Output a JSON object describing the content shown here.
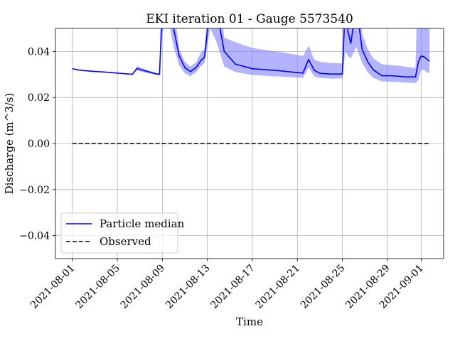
{
  "chart_data": {
    "type": "line",
    "title": "EKI iteration 01 - Gauge 5573540",
    "xlabel": "Time",
    "ylabel": "Discharge (m^3/s)",
    "xlim": [
      "2021-07-30T12:00",
      "2021-09-03T00:00"
    ],
    "ylim": [
      -0.05,
      0.05
    ],
    "x_ticks": [
      "2021-08-01",
      "2021-08-05",
      "2021-08-09",
      "2021-08-13",
      "2021-08-17",
      "2021-08-21",
      "2021-08-25",
      "2021-08-29",
      "2021-09-01"
    ],
    "y_ticks": [
      -0.04,
      -0.02,
      0.0,
      0.02,
      0.04
    ],
    "y_tick_labels": [
      "−0.04",
      "−0.02",
      "0.00",
      "0.02",
      "0.04"
    ],
    "grid": true,
    "legend_position": "lower-left",
    "colors": {
      "median": "#0000ff",
      "band": "#8080ff",
      "observed": "#000000"
    },
    "series": [
      {
        "name": "Particle median",
        "style": "line",
        "color": "#0000ff",
        "x": [
          "2021-08-01T00:00",
          "2021-08-01T12:00",
          "2021-08-02T00:00",
          "2021-08-03T00:00",
          "2021-08-04T00:00",
          "2021-08-05T00:00",
          "2021-08-06T00:00",
          "2021-08-06T08:00",
          "2021-08-06T18:00",
          "2021-08-07T12:00",
          "2021-08-08T12:00",
          "2021-08-08T18:00",
          "2021-08-09T00:00",
          "2021-08-09T12:00",
          "2021-08-10T00:00",
          "2021-08-10T12:00",
          "2021-08-11T00:00",
          "2021-08-11T12:00",
          "2021-08-12T00:00",
          "2021-08-12T10:00",
          "2021-08-12T18:00",
          "2021-08-13T06:00",
          "2021-08-13T18:00",
          "2021-08-14T12:00",
          "2021-08-15T12:00",
          "2021-08-17T00:00",
          "2021-08-19T00:00",
          "2021-08-21T00:00",
          "2021-08-21T12:00",
          "2021-08-22T00:00",
          "2021-08-22T12:00",
          "2021-08-23T00:00",
          "2021-08-24T00:00",
          "2021-08-25T00:00",
          "2021-08-25T06:00",
          "2021-08-25T12:00",
          "2021-08-25T18:00",
          "2021-08-26T06:00",
          "2021-08-26T18:00",
          "2021-08-27T06:00",
          "2021-08-27T18:00",
          "2021-08-28T12:00",
          "2021-08-29T12:00",
          "2021-08-30T12:00",
          "2021-08-31T12:00",
          "2021-08-31T18:00",
          "2021-09-01T00:00",
          "2021-09-01T06:00",
          "2021-09-01T12:00",
          "2021-09-01T18:00"
        ],
        "y": [
          0.0325,
          0.032,
          0.0317,
          0.0313,
          0.031,
          0.0306,
          0.0302,
          0.0301,
          0.0326,
          0.0315,
          0.0302,
          0.0301,
          0.06,
          0.08,
          0.05,
          0.038,
          0.033,
          0.0312,
          0.033,
          0.036,
          0.0375,
          0.06,
          0.06,
          0.04,
          0.0345,
          0.0325,
          0.0318,
          0.0308,
          0.0306,
          0.0365,
          0.0318,
          0.0305,
          0.0302,
          0.0302,
          0.06,
          0.0485,
          0.0435,
          0.06,
          0.041,
          0.0355,
          0.032,
          0.0295,
          0.0294,
          0.029,
          0.0289,
          0.0353,
          0.038,
          0.0377,
          0.0367,
          0.0358
        ]
      },
      {
        "name": "Observed",
        "style": "dashed",
        "color": "#000000",
        "x": [
          "2021-08-01T00:00",
          "2021-09-01T18:00"
        ],
        "y": [
          0.0,
          0.0
        ]
      }
    ],
    "band": {
      "color": "#8080ff",
      "x": [
        "2021-08-01T00:00",
        "2021-08-01T12:00",
        "2021-08-02T00:00",
        "2021-08-03T00:00",
        "2021-08-04T00:00",
        "2021-08-05T00:00",
        "2021-08-06T00:00",
        "2021-08-06T08:00",
        "2021-08-06T18:00",
        "2021-08-07T12:00",
        "2021-08-08T12:00",
        "2021-08-08T18:00",
        "2021-08-09T00:00",
        "2021-08-09T12:00",
        "2021-08-10T00:00",
        "2021-08-10T12:00",
        "2021-08-11T00:00",
        "2021-08-11T12:00",
        "2021-08-12T00:00",
        "2021-08-12T10:00",
        "2021-08-12T18:00",
        "2021-08-13T06:00",
        "2021-08-13T18:00",
        "2021-08-14T12:00",
        "2021-08-15T12:00",
        "2021-08-17T00:00",
        "2021-08-19T00:00",
        "2021-08-21T00:00",
        "2021-08-21T12:00",
        "2021-08-22T00:00",
        "2021-08-22T12:00",
        "2021-08-23T00:00",
        "2021-08-24T00:00",
        "2021-08-25T00:00",
        "2021-08-25T06:00",
        "2021-08-25T12:00",
        "2021-08-25T18:00",
        "2021-08-26T06:00",
        "2021-08-26T18:00",
        "2021-08-27T06:00",
        "2021-08-27T18:00",
        "2021-08-28T12:00",
        "2021-08-29T12:00",
        "2021-08-30T12:00",
        "2021-08-31T12:00",
        "2021-08-31T18:00",
        "2021-09-01T00:00",
        "2021-09-01T06:00",
        "2021-09-01T12:00",
        "2021-09-01T18:00"
      ],
      "upper": [
        0.0325,
        0.032,
        0.0317,
        0.0313,
        0.031,
        0.0306,
        0.0302,
        0.0301,
        0.0336,
        0.0322,
        0.0306,
        0.0305,
        0.08,
        0.08,
        0.06,
        0.041,
        0.0355,
        0.0335,
        0.0352,
        0.0395,
        0.041,
        0.08,
        0.08,
        0.046,
        0.044,
        0.0415,
        0.04,
        0.0385,
        0.038,
        0.0425,
        0.0365,
        0.0355,
        0.035,
        0.0348,
        0.08,
        0.08,
        0.08,
        0.08,
        0.048,
        0.041,
        0.037,
        0.0345,
        0.034,
        0.0335,
        0.0328,
        0.08,
        0.08,
        0.08,
        0.08,
        0.08
      ],
      "lower": [
        0.0325,
        0.032,
        0.0317,
        0.0313,
        0.031,
        0.0306,
        0.0302,
        0.0301,
        0.0318,
        0.0308,
        0.0298,
        0.0297,
        0.048,
        0.055,
        0.042,
        0.034,
        0.0305,
        0.0292,
        0.031,
        0.0335,
        0.035,
        0.05,
        0.045,
        0.0335,
        0.031,
        0.0298,
        0.0292,
        0.0287,
        0.0285,
        0.033,
        0.0292,
        0.0285,
        0.0282,
        0.0283,
        0.04,
        0.038,
        0.037,
        0.042,
        0.035,
        0.031,
        0.0285,
        0.027,
        0.0268,
        0.0265,
        0.0262,
        0.0275,
        0.032,
        0.032,
        0.031,
        0.0305
      ]
    }
  }
}
